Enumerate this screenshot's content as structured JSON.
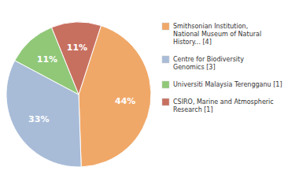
{
  "chart_data": {
    "type": "pie",
    "categories": [
      "Smithsonian Institution,\nNational Museum of Natural\nHistory... [4]",
      "Centre for Biodiversity\nGenomics [3]",
      "Universiti Malaysia Terengganu [1]",
      "CSIRO, Marine and Atmospheric\nResearch [1]"
    ],
    "values": [
      44,
      33,
      11,
      11
    ],
    "value_labels": [
      "44%",
      "33%",
      "11%",
      "11%"
    ],
    "colors": [
      "#f0a868",
      "#a8bcd8",
      "#90c878",
      "#c87060"
    ],
    "data_labels": true,
    "legend": "right"
  }
}
